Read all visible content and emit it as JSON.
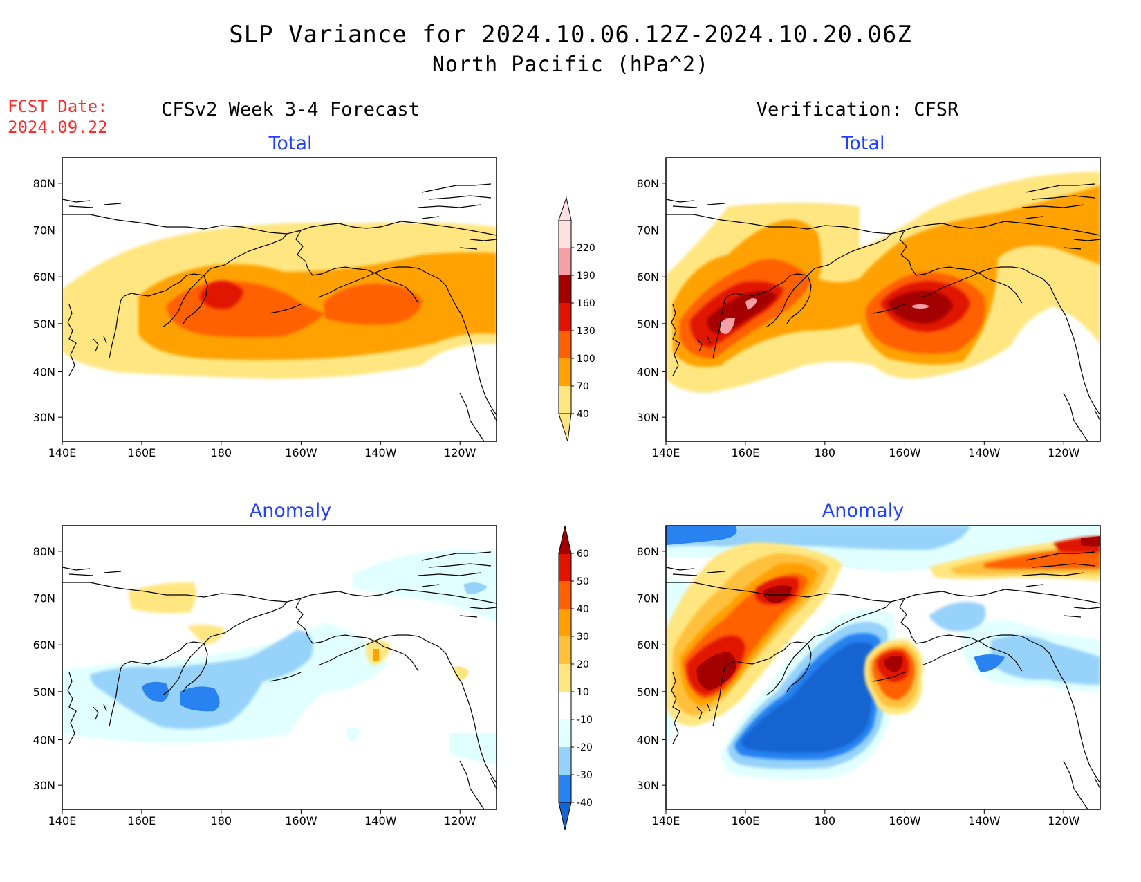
{
  "header": {
    "title": "SLP Variance for 2024.10.06.12Z-2024.10.20.06Z",
    "subtitle": "North Pacific (hPa^2)"
  },
  "fcst": {
    "label": "FCST Date:",
    "date": "2024.09.22"
  },
  "columns": {
    "left": "CFSv2 Week 3-4 Forecast",
    "right": "Verification: CFSR"
  },
  "sections": {
    "total": "Total",
    "anomaly": "Anomaly"
  },
  "axes": {
    "lat_labels": [
      "30N",
      "40N",
      "50N",
      "60N",
      "70N",
      "80N"
    ],
    "lon_labels": [
      "140E",
      "160E",
      "180",
      "160W",
      "140W",
      "120W"
    ]
  },
  "colorbars": {
    "total": {
      "levels": [
        "40",
        "70",
        "100",
        "130",
        "160",
        "190",
        "220"
      ],
      "colors": [
        "#ffe680",
        "#ffa100",
        "#ff6000",
        "#e11400",
        "#a50000",
        "#f5a0a5",
        "#fde0e0"
      ]
    },
    "anomaly": {
      "levels": [
        "-40",
        "-30",
        "-20",
        "-10",
        "10",
        "20",
        "30",
        "40",
        "50",
        "60"
      ],
      "colors": [
        "#1464d2",
        "#2882f0",
        "#96d2fa",
        "#e1ffff",
        "#ffffff",
        "#ffe680",
        "#ffc03c",
        "#ffa000",
        "#ff6000",
        "#e11400",
        "#a50000"
      ]
    }
  }
}
